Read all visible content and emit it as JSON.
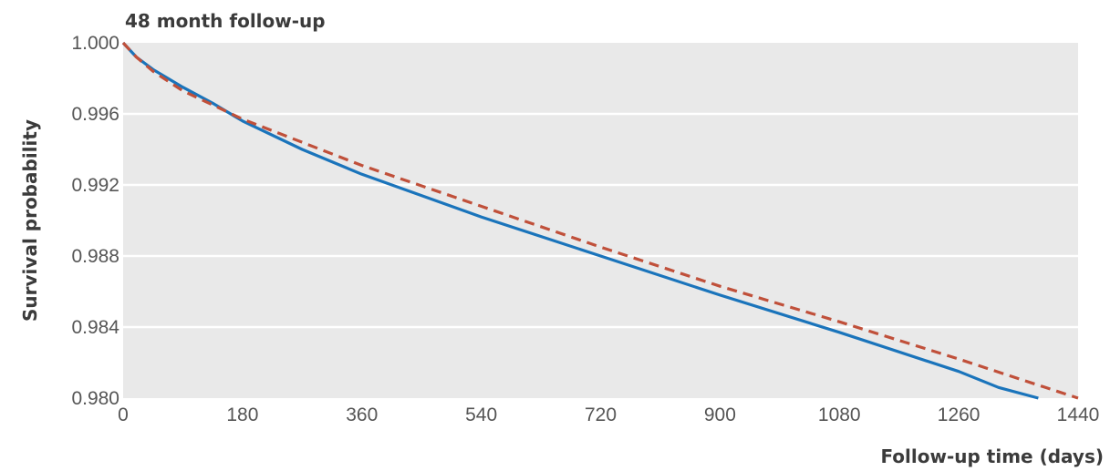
{
  "chart_data": {
    "type": "line",
    "title": "48 month follow-up",
    "xlabel": "Follow-up time (days)",
    "ylabel": "Survival probability",
    "xlim": [
      0,
      1440
    ],
    "ylim": [
      0.98,
      1.0
    ],
    "x_ticks": [
      "0",
      "180",
      "360",
      "540",
      "720",
      "900",
      "1080",
      "1260",
      "1440"
    ],
    "y_ticks": [
      "1.000",
      "0.996",
      "0.992",
      "0.988",
      "0.984",
      "0.980"
    ],
    "grid": true,
    "legend": "none",
    "series": [
      {
        "color": "#1a74bb",
        "style": "solid",
        "x": [
          0,
          20,
          45,
          90,
          135,
          180,
          270,
          360,
          540,
          720,
          900,
          1080,
          1260,
          1320,
          1380
        ],
        "y": [
          1.0,
          0.9992,
          0.9985,
          0.9975,
          0.9966,
          0.9956,
          0.994,
          0.9926,
          0.9902,
          0.988,
          0.9858,
          0.9837,
          0.9815,
          0.9806,
          0.98
        ]
      },
      {
        "color": "#c0503a",
        "style": "dashed",
        "x": [
          0,
          20,
          45,
          90,
          135,
          180,
          270,
          360,
          540,
          720,
          900,
          1080,
          1260,
          1350,
          1440
        ],
        "y": [
          1.0,
          0.9992,
          0.9984,
          0.9973,
          0.9965,
          0.9957,
          0.9944,
          0.9931,
          0.9908,
          0.9885,
          0.9863,
          0.9843,
          0.9822,
          0.9811,
          0.98
        ]
      }
    ]
  }
}
